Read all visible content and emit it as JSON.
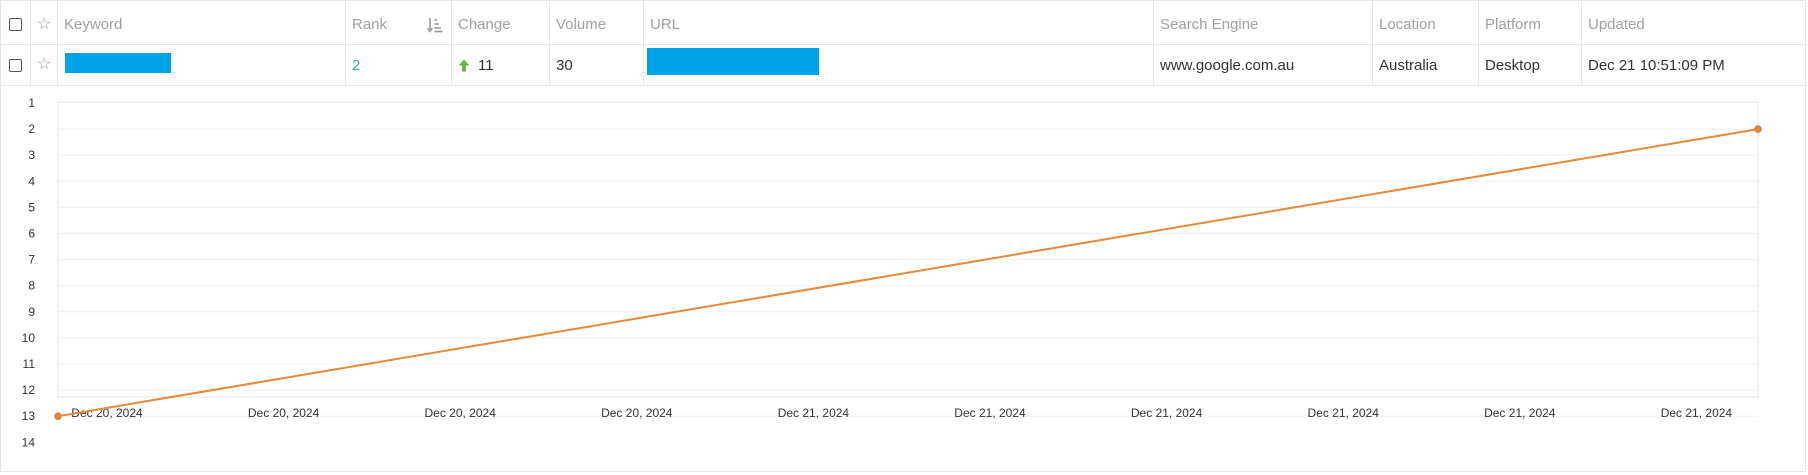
{
  "table": {
    "headers": {
      "keyword": "Keyword",
      "rank": "Rank",
      "change": "Change",
      "volume": "Volume",
      "url": "URL",
      "search_engine": "Search Engine",
      "location": "Location",
      "platform": "Platform",
      "updated": "Updated"
    },
    "row": {
      "rank": "2",
      "change": "11",
      "volume": "30",
      "search_engine": "www.google.com.au",
      "location": "Australia",
      "platform": "Desktop",
      "updated": "Dec 21 10:51:09 PM"
    }
  },
  "colors": {
    "line": "#e8893a",
    "redaction": "#00a2e8",
    "rank_link": "#3fa0c8",
    "up_arrow": "#6cb33f"
  },
  "icons": {
    "checkbox": "checkbox-icon",
    "star": "star-icon",
    "sort": "sort-ascending-icon",
    "up": "arrow-up-icon"
  },
  "chart_data": {
    "type": "line",
    "y_reversed": true,
    "ylim": [
      1,
      14
    ],
    "y_ticks": [
      "1",
      "2",
      "3",
      "4",
      "5",
      "6",
      "7",
      "8",
      "9",
      "10",
      "11",
      "12",
      "13",
      "14"
    ],
    "x_tick_labels": [
      "Dec 20, 2024",
      "Dec 20, 2024",
      "Dec 20, 2024",
      "Dec 20, 2024",
      "Dec 21, 2024",
      "Dec 21, 2024",
      "Dec 21, 2024",
      "Dec 21, 2024",
      "Dec 21, 2024",
      "Dec 21, 2024"
    ],
    "series": [
      {
        "values": [
          13,
          2
        ]
      }
    ],
    "grid": true
  }
}
